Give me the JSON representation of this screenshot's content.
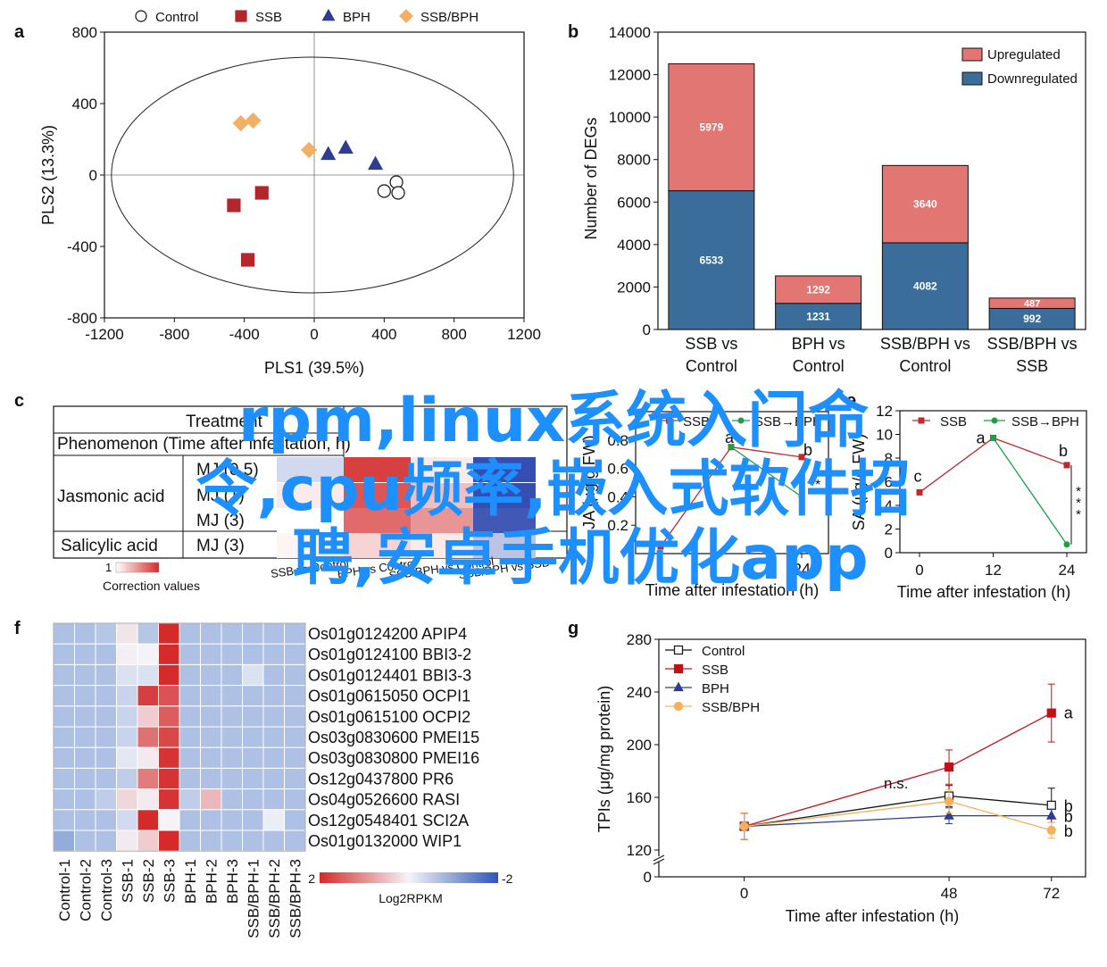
{
  "overlay_text": {
    "line1": "rpm,linux系统入门命",
    "line2": "令,cpu频率,嵌入式软件招",
    "line3": "聘,安卓手机优化app"
  },
  "chart_data": [
    {
      "panel": "a",
      "type": "scatter",
      "xlabel": "PLS1 (39.5%)",
      "ylabel": "PLS2 (13.3%)",
      "xlim": [
        -1200,
        1200
      ],
      "ylim": [
        -800,
        800
      ],
      "xticks": [
        "-1200",
        "-800",
        "-400",
        "0",
        "400",
        "800",
        "1200"
      ],
      "yticks": [
        "800",
        "400",
        "0",
        "-400",
        "-800"
      ],
      "legend_position": "top",
      "series": [
        {
          "name": "Control",
          "marker": "circle",
          "color": "#ffffff",
          "points": [
            [
              470,
              -40
            ],
            [
              400,
              -90
            ],
            [
              480,
              -100
            ]
          ]
        },
        {
          "name": "SSB",
          "marker": "square",
          "color": "#b3262b",
          "points": [
            [
              -460,
              -170
            ],
            [
              -300,
              -100
            ],
            [
              -380,
              -475
            ]
          ]
        },
        {
          "name": "BPH",
          "marker": "triangle",
          "color": "#2e3d8f",
          "points": [
            [
              80,
              115
            ],
            [
              180,
              150
            ],
            [
              350,
              60
            ]
          ]
        },
        {
          "name": "SSB/BPH",
          "marker": "diamond",
          "color": "#f1b066",
          "points": [
            [
              -420,
              290
            ],
            [
              -350,
              305
            ],
            [
              -30,
              140
            ]
          ]
        }
      ]
    },
    {
      "panel": "b",
      "type": "bar",
      "stacked": true,
      "ylabel": "Number of DEGs",
      "ylim": [
        0,
        14000
      ],
      "yticks": [
        "0",
        "2000",
        "4000",
        "6000",
        "8000",
        "10000",
        "12000",
        "14000"
      ],
      "categories": [
        [
          "SSB vs",
          "Control"
        ],
        [
          "BPH vs",
          "Control"
        ],
        [
          "SSB/BPH vs",
          "Control"
        ],
        [
          "SSB/BPH vs",
          "SSB"
        ]
      ],
      "legend_position": "top-right",
      "series": [
        {
          "name": "Downregulated",
          "color": "#3a6d9a",
          "values": [
            6533,
            1231,
            4082,
            992
          ],
          "labels": [
            "6533",
            "1231",
            "4082",
            "992"
          ]
        },
        {
          "name": "Upregulated",
          "color": "#e27672",
          "values": [
            5979,
            1292,
            3640,
            487
          ],
          "labels": [
            "5979",
            "1292",
            "3640",
            "487"
          ]
        }
      ]
    },
    {
      "panel": "c",
      "type": "heatmap",
      "header_partial": "Treatment",
      "header2_partial": "Phenomenon (Time after infestation, h)",
      "rows": [
        {
          "group": "Jasmonic acid",
          "label": "MJ (0.5)"
        },
        {
          "group": "Jasmonic acid",
          "label": "MJ (1)"
        },
        {
          "group": "Jasmonic acid",
          "label": "MJ (3)"
        },
        {
          "group": "Salicylic acid",
          "label": "MJ (3)"
        }
      ],
      "group_labels": [
        "Jasmonic acid",
        "Salicylic acid"
      ],
      "columns": [
        "SSB vs Control",
        "BPH vs Control",
        "SSB/BPH vs Control",
        "SSB/BPH vs SSB"
      ],
      "values": [
        [
          -0.2,
          0.9,
          0.1,
          -0.9
        ],
        [
          0.1,
          0.8,
          0.3,
          -0.9
        ],
        [
          0.0,
          0.7,
          0.5,
          -0.85
        ],
        [
          0.05,
          0.2,
          0.1,
          -0.3
        ]
      ],
      "colorbar_min_label": "1",
      "colorbar_caption": "Correction values"
    },
    {
      "panel": "d",
      "type": "line",
      "xlabel": "Time after infestation (h)",
      "ylabel": "JA (μg/g FW)",
      "ylim": [
        0,
        1.0
      ],
      "yticks": [
        "0.8",
        "0.6",
        "0.4",
        "0.2"
      ],
      "xticks": [
        "24"
      ],
      "legend": [
        "SSB",
        "SSB→BPH"
      ],
      "letters": [
        "a",
        "b",
        "*"
      ],
      "series": [
        {
          "name": "SSB",
          "color": "#c0282d",
          "x": [
            0,
            12,
            24
          ],
          "y": [
            0.05,
            0.75,
            0.68
          ]
        },
        {
          "name": "SSB→BPH",
          "color": "#1f9e4a",
          "x": [
            12,
            24
          ],
          "y": [
            0.75,
            0.4
          ]
        }
      ]
    },
    {
      "panel": "e",
      "type": "line",
      "xlabel": "Time after infestation (h)",
      "ylabel": "SA (μg/g FW)",
      "xlim": [
        0,
        24
      ],
      "ylim": [
        0,
        12
      ],
      "xticks": [
        "0",
        "12",
        "24"
      ],
      "yticks": [
        "0",
        "2",
        "4",
        "6",
        "8",
        "10",
        "12"
      ],
      "legend_position": "top",
      "series": [
        {
          "name": "SSB",
          "color": "#c0282d",
          "x": [
            0,
            12,
            24
          ],
          "y": [
            5.1,
            9.7,
            7.4
          ],
          "letters": [
            "c",
            "a",
            "b"
          ]
        },
        {
          "name": "SSB→BPH",
          "color": "#1f9e4a",
          "x": [
            12,
            24
          ],
          "y": [
            9.7,
            0.7
          ]
        }
      ],
      "significance": "***"
    },
    {
      "panel": "f",
      "type": "heatmap",
      "rows": [
        "Os01g0124200 APIP4",
        "Os01g0124100 BBI3-2",
        "Os01g0124401 BBI3-3",
        "Os01g0615050 OCPI1",
        "Os01g0615100 OCPI2",
        "Os03g0830600 PMEI15",
        "Os03g0830800 PMEI16",
        "Os12g0437800 PR6",
        "Os04g0526600 RASI",
        "Os12g0548401 SCI2A",
        "Os01g0132000 WIP1"
      ],
      "columns": [
        "Control-1",
        "Control-2",
        "Control-3",
        "SSB-1",
        "SSB-2",
        "SSB-3",
        "BPH-1",
        "BPH-2",
        "BPH-3",
        "SSB/BPH-1",
        "SSB/BPH-2",
        "SSB/BPH-3"
      ],
      "values": [
        [
          -0.8,
          -0.8,
          -0.7,
          0.15,
          -0.7,
          2.0,
          -0.8,
          -0.8,
          -0.8,
          -0.8,
          -0.8,
          -0.8
        ],
        [
          -0.8,
          -0.8,
          -0.8,
          0.05,
          0.0,
          2.0,
          -0.8,
          -0.8,
          -0.8,
          -0.8,
          -0.8,
          -0.8
        ],
        [
          -0.8,
          -0.8,
          -0.8,
          -0.3,
          -0.3,
          2.0,
          -0.8,
          -0.8,
          -0.8,
          -0.3,
          -0.8,
          -0.8
        ],
        [
          -0.8,
          -0.8,
          -0.8,
          -0.5,
          1.8,
          1.6,
          -0.8,
          -0.8,
          -0.8,
          -0.8,
          -0.8,
          -0.8
        ],
        [
          -0.8,
          -0.8,
          -0.8,
          -0.5,
          0.4,
          1.5,
          -0.8,
          -0.8,
          -0.8,
          -0.8,
          -0.8,
          -0.8
        ],
        [
          -0.8,
          -0.8,
          -0.8,
          -0.5,
          1.3,
          1.7,
          -0.8,
          -0.8,
          -0.8,
          -0.8,
          -0.8,
          -0.8
        ],
        [
          -0.8,
          -0.8,
          -0.8,
          -0.2,
          0.1,
          1.9,
          -0.8,
          -0.8,
          -0.8,
          -0.8,
          -0.8,
          -0.8
        ],
        [
          -0.8,
          -0.8,
          -0.8,
          -0.6,
          1.2,
          1.9,
          -0.8,
          -0.8,
          -0.8,
          -0.8,
          -0.8,
          -0.8
        ],
        [
          -0.8,
          -0.8,
          -0.6,
          0.3,
          0.1,
          1.9,
          -0.6,
          0.6,
          -0.8,
          -0.8,
          -0.8,
          -0.8
        ],
        [
          -0.8,
          -0.8,
          -0.8,
          -0.4,
          2.0,
          0.0,
          -0.8,
          -0.8,
          -0.8,
          -0.8,
          -0.1,
          -0.8
        ],
        [
          -1.1,
          -0.8,
          -0.8,
          0.1,
          0.4,
          2.0,
          -0.8,
          -0.8,
          -0.8,
          -0.8,
          -0.8,
          -0.8
        ]
      ],
      "colorbar_labels": [
        "2",
        "-2"
      ],
      "colorbar_caption": "Log2RPKM"
    },
    {
      "panel": "g",
      "type": "line",
      "xlabel": "Time after infestation (h)",
      "ylabel": "TPIs (μg/mg protein)",
      "xlim": [
        -20,
        80
      ],
      "ylim": [
        120,
        280
      ],
      "axis_break": true,
      "xticks": [
        "0",
        "48",
        "72"
      ],
      "yticks": [
        "0",
        "120",
        "160",
        "200",
        "240",
        "280"
      ],
      "legend_position": "top-left",
      "annotation": "n.s.",
      "series": [
        {
          "name": "Control",
          "marker": "open-square",
          "color": "#111111",
          "x": [
            0,
            48,
            72
          ],
          "y": [
            138,
            161,
            154
          ],
          "err": [
            10,
            8,
            13
          ],
          "end_letter": "b"
        },
        {
          "name": "SSB",
          "marker": "square",
          "color": "#c0111a",
          "x": [
            0,
            48,
            72
          ],
          "y": [
            138,
            183,
            224
          ],
          "err": [
            10,
            13,
            22
          ],
          "end_letter": "a"
        },
        {
          "name": "BPH",
          "marker": "triangle",
          "color": "#2e3d8f",
          "x": [
            0,
            48,
            72
          ],
          "y": [
            138,
            146,
            146
          ],
          "err": [
            10,
            6,
            5
          ],
          "end_letter": "b"
        },
        {
          "name": "SSB/BPH",
          "marker": "circle",
          "color": "#f6b05a",
          "x": [
            0,
            48,
            72
          ],
          "y": [
            138,
            157,
            135
          ],
          "err": [
            10,
            9,
            6
          ],
          "end_letter": "b"
        }
      ]
    }
  ],
  "panel_letters": [
    "a",
    "b",
    "c",
    "e",
    "f",
    "g"
  ]
}
